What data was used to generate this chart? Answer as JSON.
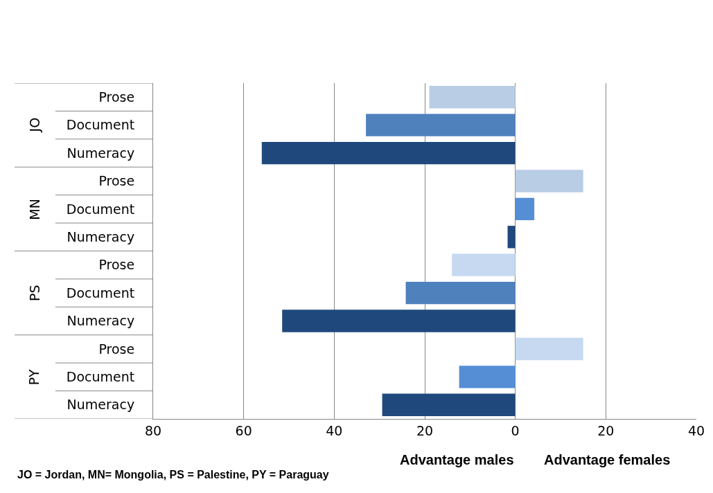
{
  "chart_data": {
    "type": "bar",
    "orientation": "horizontal",
    "categories": [
      "Prose",
      "Document",
      "Numeracy",
      "Prose",
      "Document",
      "Numeracy",
      "Prose",
      "Document",
      "Numeracy",
      "Prose",
      "Document",
      "Numeracy"
    ],
    "values": [
      -19,
      -33,
      -56,
      15,
      4.2,
      -1.7,
      -14,
      -24.2,
      -51.5,
      15,
      -12.4,
      -29.4
    ],
    "colors": [
      "#b9cde5",
      "#4f81bd",
      "#1f497d",
      "#b9cde5",
      "#558ed5",
      "#1f497d",
      "#c6d9f1",
      "#4f81bd",
      "#1f497d",
      "#c6d9f1",
      "#558ed5",
      "#1f497d"
    ],
    "xlim": [
      -80,
      40
    ],
    "xticks": [
      {
        "value": -80,
        "label": "80"
      },
      {
        "value": -60,
        "label": "60"
      },
      {
        "value": -40,
        "label": "40"
      },
      {
        "value": -20,
        "label": "20"
      },
      0,
      20,
      40
    ],
    "grid": "x",
    "annotations": [
      "JO",
      "MN",
      "PS",
      "PY",
      "Advantage males",
      "Advantage females",
      "JO = Jordan, MN= Mongolia, PS = Palestine, PY = Paraguay"
    ]
  }
}
